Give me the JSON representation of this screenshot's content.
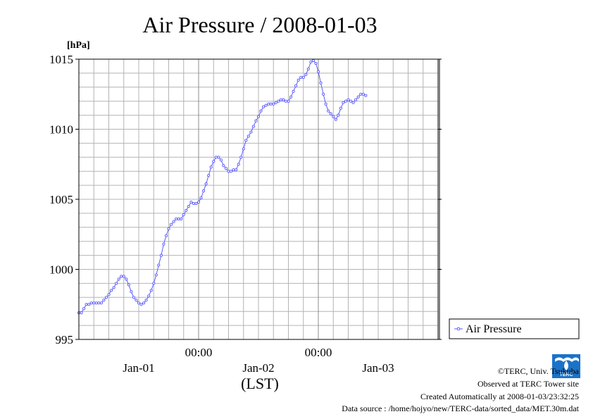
{
  "colors": {
    "series": "#5a5aff",
    "grid": "#b4b4b4",
    "axis": "#000000"
  },
  "chart_data": {
    "type": "line",
    "title": "Air Pressure / 2008-01-03",
    "ylabel": "[hPa]",
    "xlabel": "(LST)",
    "ylim": [
      995,
      1015
    ],
    "yticks": [
      "995",
      "1000",
      "1005",
      "1010",
      "1015"
    ],
    "xlim": [
      "2008-01-01T00:00",
      "2008-01-04T00:00"
    ],
    "xtime_labels": [
      {
        "t": "2008-01-02T00:00",
        "label": "00:00"
      },
      {
        "t": "2008-01-03T00:00",
        "label": "00:00"
      }
    ],
    "xdate_labels": [
      {
        "t": "2008-01-01T12:00",
        "label": "Jan-01"
      },
      {
        "t": "2008-01-02T12:00",
        "label": "Jan-02"
      },
      {
        "t": "2008-01-03T12:00",
        "label": "Jan-03"
      }
    ],
    "x_interval": "30 min",
    "grid": true,
    "legend_position": "right",
    "series": [
      {
        "name": "Air Pressure",
        "x_start": "2008-01-01T00:00",
        "values": [
          996.9,
          996.9,
          997.2,
          997.5,
          997.5,
          997.6,
          997.6,
          997.6,
          997.6,
          997.6,
          997.8,
          998,
          998.2,
          998.5,
          998.7,
          999,
          999.3,
          999.5,
          999.5,
          999.3,
          998.9,
          998.4,
          998,
          997.8,
          997.6,
          997.5,
          997.6,
          997.8,
          998.1,
          998.5,
          999,
          999.6,
          1000.3,
          1001,
          1001.8,
          1002.4,
          1002.9,
          1003.2,
          1003.4,
          1003.6,
          1003.6,
          1003.6,
          1003.9,
          1004.2,
          1004.5,
          1004.8,
          1004.7,
          1004.7,
          1004.8,
          1005.1,
          1005.6,
          1006.1,
          1006.7,
          1007.3,
          1007.7,
          1008,
          1008,
          1007.8,
          1007.4,
          1007.2,
          1007,
          1007,
          1007.1,
          1007.1,
          1007.5,
          1008,
          1008.6,
          1009.2,
          1009.5,
          1009.8,
          1010.2,
          1010.6,
          1010.9,
          1011.3,
          1011.6,
          1011.7,
          1011.8,
          1011.8,
          1011.8,
          1011.9,
          1012,
          1012.1,
          1012.1,
          1012,
          1012,
          1012.3,
          1012.7,
          1013.1,
          1013.5,
          1013.7,
          1013.7,
          1013.9,
          1014.3,
          1014.8,
          1014.9,
          1014.7,
          1014.1,
          1013.3,
          1012.5,
          1011.8,
          1011.3,
          1011.1,
          1010.9,
          1010.7,
          1011,
          1011.5,
          1011.9,
          1012,
          1012.1,
          1012,
          1011.9,
          1012.1,
          1012.3,
          1012.5,
          1012.5,
          1012.4
        ]
      }
    ]
  },
  "legend": {
    "label": "Air Pressure"
  },
  "footer": {
    "copyright": "©TERC, Univ. Tsukuba",
    "observed": "Observed at TERC Tower site",
    "created": "Created Automatically at 2008-01-03/23:32:25",
    "source": "Data source : /home/hojyo/new/TERC-data/sorted_data/MET.30m.dat",
    "logo_text": "TERC"
  }
}
